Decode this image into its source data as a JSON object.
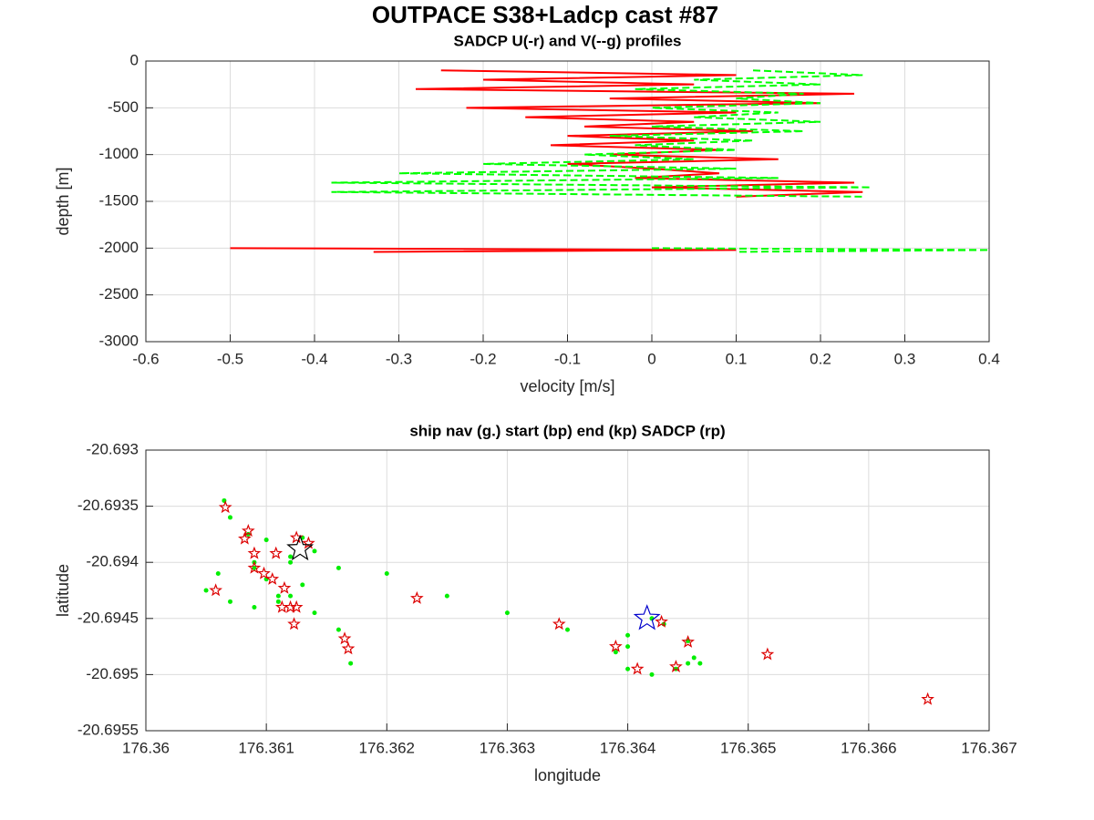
{
  "title": "OUTPACE S38+Ladcp cast #87",
  "chart_data": [
    {
      "type": "line",
      "title": "SADCP U(-r) and V(--g) profiles",
      "xlabel": "velocity [m/s]",
      "ylabel": "depth [m]",
      "depth": [
        -100,
        -150,
        -200,
        -250,
        -300,
        -350,
        -400,
        -450,
        -500,
        -550,
        -600,
        -650,
        -700,
        -750,
        -800,
        -850,
        -900,
        -950,
        -1000,
        -1050,
        -1100,
        -1150,
        -1200,
        -1250,
        -1300,
        -1350,
        -1400,
        -1450,
        -1700,
        -2000,
        -2020,
        -2040
      ],
      "series": [
        {
          "color": "#ff0000",
          "linestyle": "solid",
          "values": [
            -0.25,
            0.1,
            -0.2,
            0.05,
            -0.28,
            0.24,
            -0.05,
            0.2,
            -0.22,
            0.1,
            -0.15,
            0.05,
            -0.08,
            0.12,
            -0.1,
            0.05,
            -0.12,
            0.08,
            -0.05,
            0.15,
            -0.1,
            0.0,
            0.08,
            -0.02,
            0.24,
            0.0,
            0.25,
            0.1,
            null,
            -0.5,
            0.1,
            -0.33
          ]
        },
        {
          "color": "#00ff00",
          "linestyle": "dashed",
          "values": [
            0.12,
            0.25,
            0.05,
            0.2,
            -0.02,
            0.18,
            0.1,
            0.2,
            0.0,
            0.15,
            0.05,
            0.2,
            0.0,
            0.18,
            -0.05,
            0.12,
            -0.02,
            0.1,
            -0.08,
            0.05,
            -0.2,
            0.1,
            -0.3,
            0.15,
            -0.38,
            0.26,
            -0.38,
            0.25,
            null,
            0.0,
            0.4,
            0.1
          ]
        }
      ],
      "xlim": [
        -0.6,
        0.4
      ],
      "xticks": [
        -0.6,
        -0.5,
        -0.4,
        -0.3,
        -0.2,
        -0.1,
        0,
        0.1,
        0.2,
        0.3,
        0.4
      ],
      "ylim": [
        -3000,
        0
      ],
      "yticks": [
        0,
        -500,
        -1000,
        -1500,
        -2000,
        -2500,
        -3000
      ],
      "grid": true
    },
    {
      "type": "scatter",
      "title": "ship nav (g.) start (bp) end (kp) SADCP (rp)",
      "xlabel": "longitude",
      "ylabel": "latitude",
      "series": [
        {
          "marker": "dot",
          "color": "#00ee00",
          "markersize": 2.5,
          "x": [
            176.36065,
            176.3607,
            176.36085,
            176.3609,
            176.361,
            176.3613,
            176.3614,
            176.3612,
            176.361,
            176.3611,
            176.3612,
            176.3614,
            176.3616,
            176.3617,
            176.3613,
            176.3611,
            176.3609,
            176.3607,
            176.3605,
            176.3606,
            176.3609,
            176.3612,
            176.3616,
            176.362,
            176.3625,
            176.363,
            176.3635,
            176.364,
            176.3645,
            176.36455,
            176.3644,
            176.3642,
            176.364,
            176.3639,
            176.364,
            176.3642,
            176.3643,
            176.3645,
            176.3646
          ],
          "y": [
            -20.69345,
            -20.6936,
            -20.69375,
            -20.694,
            -20.6938,
            -20.69378,
            -20.6939,
            -20.69395,
            -20.69415,
            -20.6943,
            -20.6943,
            -20.69445,
            -20.6946,
            -20.6949,
            -20.6942,
            -20.69435,
            -20.6944,
            -20.69435,
            -20.69425,
            -20.6941,
            -20.69405,
            -20.694,
            -20.69405,
            -20.6941,
            -20.6943,
            -20.69445,
            -20.6946,
            -20.69475,
            -20.6949,
            -20.69485,
            -20.69495,
            -20.695,
            -20.69495,
            -20.6948,
            -20.69465,
            -20.6945,
            -20.69455,
            -20.6947,
            -20.6949
          ]
        },
        {
          "marker": "star",
          "color": "#dd0000",
          "markersize": 6,
          "x": [
            176.36066,
            176.36085,
            176.36082,
            176.3609,
            176.36108,
            176.36125,
            176.36135,
            176.3609,
            176.36098,
            176.36105,
            176.36058,
            176.36115,
            176.36113,
            176.36125,
            176.3612,
            176.36123,
            176.36165,
            176.36168,
            176.36225,
            176.36343,
            176.3639,
            176.36408,
            176.3644,
            176.3645,
            176.36428,
            176.36516,
            176.36649
          ],
          "y": [
            -20.69351,
            -20.69372,
            -20.69379,
            -20.69392,
            -20.69392,
            -20.69378,
            -20.69383,
            -20.69405,
            -20.6941,
            -20.69415,
            -20.69425,
            -20.69423,
            -20.6944,
            -20.6944,
            -20.6944,
            -20.69455,
            -20.69468,
            -20.69477,
            -20.69432,
            -20.69455,
            -20.69475,
            -20.69495,
            -20.69493,
            -20.69471,
            -20.69453,
            -20.69482,
            -20.69522
          ]
        },
        {
          "marker": "star",
          "color": "#0000cc",
          "markersize": 14,
          "x": [
            176.36416
          ],
          "y": [
            -20.6945
          ]
        },
        {
          "marker": "star",
          "color": "#000000",
          "markersize": 14,
          "x": [
            176.36128
          ],
          "y": [
            -20.69388
          ]
        }
      ],
      "xlim": [
        176.36,
        176.367
      ],
      "xticks": [
        176.36,
        176.361,
        176.362,
        176.363,
        176.364,
        176.365,
        176.366,
        176.367
      ],
      "ylim": [
        -20.6955,
        -20.693
      ],
      "yticks": [
        -20.693,
        -20.6935,
        -20.694,
        -20.6945,
        -20.695,
        -20.6955
      ],
      "grid": true
    }
  ]
}
